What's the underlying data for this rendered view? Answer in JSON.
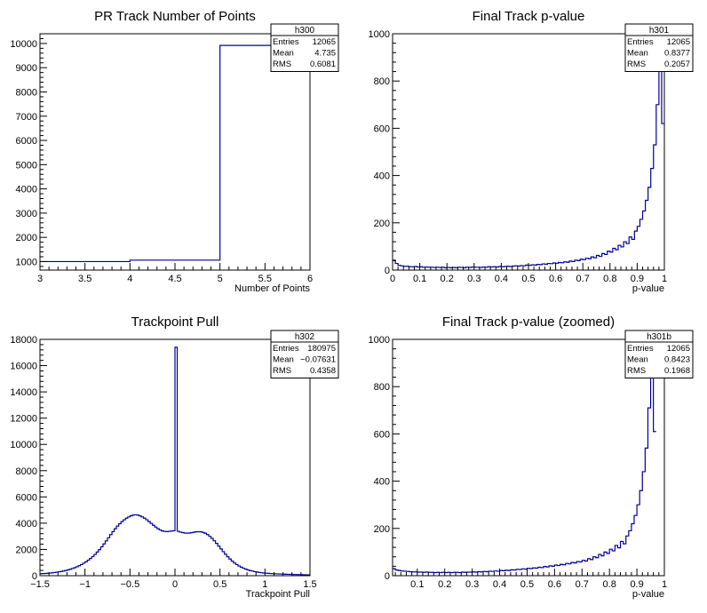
{
  "colors": {
    "line": "#000099",
    "axis": "#000000",
    "background": "#ffffff"
  },
  "chart_data": [
    {
      "type": "histogram",
      "title": "PR Track Number of Points",
      "xlabel": "Number of Points",
      "ylabel": "",
      "xlim": [
        3,
        6
      ],
      "ylim": [
        650,
        10400
      ],
      "xticks": [
        3,
        3.5,
        4,
        4.5,
        5,
        5.5,
        6
      ],
      "xtick_labels": [
        "3",
        "3.5",
        "4",
        "4.5",
        "5",
        "5.5",
        "6"
      ],
      "yticks": [
        1000,
        2000,
        3000,
        4000,
        5000,
        6000,
        7000,
        8000,
        9000,
        10000
      ],
      "ytick_labels": [
        "1000",
        "2000",
        "3000",
        "4000",
        "5000",
        "6000",
        "7000",
        "8000",
        "9000",
        "10000"
      ],
      "bins": [
        {
          "from": 3,
          "to": 4,
          "value": 1000
        },
        {
          "from": 4,
          "to": 5,
          "value": 1060
        },
        {
          "from": 5,
          "to": 6,
          "value": 9920
        }
      ],
      "stats": {
        "name": "h300",
        "rows": [
          {
            "label": "Entries",
            "value": "12065"
          },
          {
            "label": "Mean",
            "value": "4.735"
          },
          {
            "label": "RMS",
            "value": "0.6081"
          }
        ]
      }
    },
    {
      "type": "histogram",
      "title": "Final Track p-value",
      "xlabel": "p-value",
      "ylabel": "",
      "xlim": [
        0,
        1
      ],
      "ylim": [
        0,
        1000
      ],
      "xticks": [
        0,
        0.1,
        0.2,
        0.3,
        0.4,
        0.5,
        0.6,
        0.7,
        0.8,
        0.9,
        1
      ],
      "xtick_labels": [
        "0",
        "0.1",
        "0.2",
        "0.3",
        "0.4",
        "0.5",
        "0.6",
        "0.7",
        "0.8",
        "0.9",
        "1"
      ],
      "yticks": [
        0,
        200,
        400,
        600,
        800,
        1000
      ],
      "ytick_labels": [
        "0",
        "200",
        "400",
        "600",
        "800",
        "1000"
      ],
      "bin_width": 0.01,
      "values": [
        42,
        28,
        20,
        18,
        16,
        16,
        14,
        14,
        15,
        13,
        14,
        12,
        13,
        12,
        12,
        11,
        12,
        11,
        12,
        10,
        11,
        10,
        11,
        10,
        12,
        11,
        10,
        12,
        11,
        13,
        12,
        12,
        11,
        13,
        12,
        14,
        13,
        14,
        13,
        15,
        14,
        15,
        16,
        15,
        17,
        18,
        17,
        19,
        18,
        21,
        20,
        22,
        21,
        24,
        23,
        26,
        25,
        28,
        27,
        30,
        29,
        32,
        31,
        35,
        33,
        38,
        36,
        42,
        40,
        46,
        44,
        50,
        48,
        56,
        52,
        62,
        58,
        70,
        66,
        80,
        76,
        92,
        86,
        105,
        98,
        120,
        112,
        140,
        130,
        165,
        185,
        215,
        250,
        295,
        350,
        430,
        530,
        700,
        950,
        620
      ],
      "stats": {
        "name": "h301",
        "rows": [
          {
            "label": "Entries",
            "value": "12065"
          },
          {
            "label": "Mean",
            "value": "0.8377"
          },
          {
            "label": "RMS",
            "value": "0.2057"
          }
        ]
      }
    },
    {
      "type": "histogram",
      "title": "Trackpoint Pull",
      "xlabel": "Trackpoint Pull",
      "ylabel": "",
      "xlim": [
        -1.5,
        1.5
      ],
      "ylim": [
        0,
        18000
      ],
      "xticks": [
        -1.5,
        -1,
        -0.5,
        0,
        0.5,
        1,
        1.5
      ],
      "xtick_labels": [
        "−1.5",
        "−1",
        "−0.5",
        "0",
        "0.5",
        "1",
        "1.5"
      ],
      "yticks": [
        0,
        2000,
        4000,
        6000,
        8000,
        10000,
        12000,
        14000,
        16000,
        18000
      ],
      "ytick_labels": [
        "0",
        "2000",
        "4000",
        "6000",
        "8000",
        "10000",
        "12000",
        "14000",
        "16000",
        "18000"
      ],
      "bin_width": 0.025,
      "values": [
        150,
        160,
        170,
        185,
        200,
        220,
        240,
        265,
        290,
        320,
        355,
        395,
        440,
        490,
        545,
        610,
        680,
        760,
        850,
        950,
        1060,
        1180,
        1310,
        1460,
        1620,
        1800,
        1990,
        2200,
        2420,
        2650,
        2890,
        3130,
        3360,
        3580,
        3780,
        3960,
        4120,
        4260,
        4380,
        4480,
        4560,
        4620,
        4640,
        4620,
        4560,
        4480,
        4380,
        4260,
        4120,
        3980,
        3840,
        3700,
        3580,
        3480,
        3410,
        3370,
        3360,
        3380,
        3400,
        3420,
        17400,
        3380,
        3320,
        3280,
        3250,
        3240,
        3250,
        3280,
        3310,
        3340,
        3350,
        3340,
        3300,
        3230,
        3130,
        3000,
        2840,
        2660,
        2460,
        2250,
        2040,
        1830,
        1630,
        1440,
        1270,
        1110,
        970,
        850,
        740,
        650,
        570,
        500,
        440,
        390,
        350,
        310,
        280,
        250,
        225,
        205,
        190,
        175,
        165,
        155,
        145,
        138,
        130,
        124,
        118,
        112,
        106,
        100,
        95,
        90,
        85,
        80,
        76,
        72,
        68,
        64
      ],
      "stats": {
        "name": "h302",
        "rows": [
          {
            "label": "Entries",
            "value": "180975"
          },
          {
            "label": "Mean",
            "value": "−0.07631"
          },
          {
            "label": "RMS",
            "value": "0.4358"
          }
        ]
      }
    },
    {
      "type": "histogram",
      "title": "Final Track p-value (zoomed)",
      "xlabel": "p-value",
      "ylabel": "",
      "xlim": [
        0.01,
        1
      ],
      "ylim": [
        0,
        1000
      ],
      "xticks": [
        0.1,
        0.2,
        0.3,
        0.4,
        0.5,
        0.6,
        0.7,
        0.8,
        0.9,
        1
      ],
      "xtick_labels": [
        "0.1",
        "0.2",
        "0.3",
        "0.4",
        "0.5",
        "0.6",
        "0.7",
        "0.8",
        "0.9",
        "1"
      ],
      "yticks": [
        0,
        200,
        400,
        600,
        800,
        1000
      ],
      "ytick_labels": [
        "0",
        "200",
        "400",
        "600",
        "800",
        "1000"
      ],
      "bin_width": 0.01,
      "values": [
        30,
        24,
        22,
        20,
        19,
        18,
        17,
        16,
        16,
        15,
        15,
        14,
        15,
        14,
        14,
        13,
        14,
        13,
        14,
        13,
        14,
        13,
        14,
        14,
        13,
        15,
        14,
        15,
        15,
        16,
        15,
        17,
        16,
        18,
        17,
        19,
        18,
        20,
        19,
        22,
        21,
        23,
        22,
        25,
        24,
        27,
        26,
        29,
        28,
        31,
        30,
        33,
        32,
        36,
        34,
        39,
        37,
        42,
        40,
        45,
        43,
        48,
        46,
        52,
        50,
        56,
        54,
        60,
        58,
        65,
        62,
        72,
        68,
        80,
        76,
        90,
        84,
        100,
        94,
        112,
        105,
        128,
        118,
        145,
        135,
        168,
        190,
        220,
        255,
        300,
        360,
        440,
        540,
        710,
        940,
        610
      ],
      "stats": {
        "name": "h301b",
        "rows": [
          {
            "label": "Entries",
            "value": "12065"
          },
          {
            "label": "Mean",
            "value": "0.8423"
          },
          {
            "label": "RMS",
            "value": "0.1968"
          }
        ]
      }
    }
  ]
}
